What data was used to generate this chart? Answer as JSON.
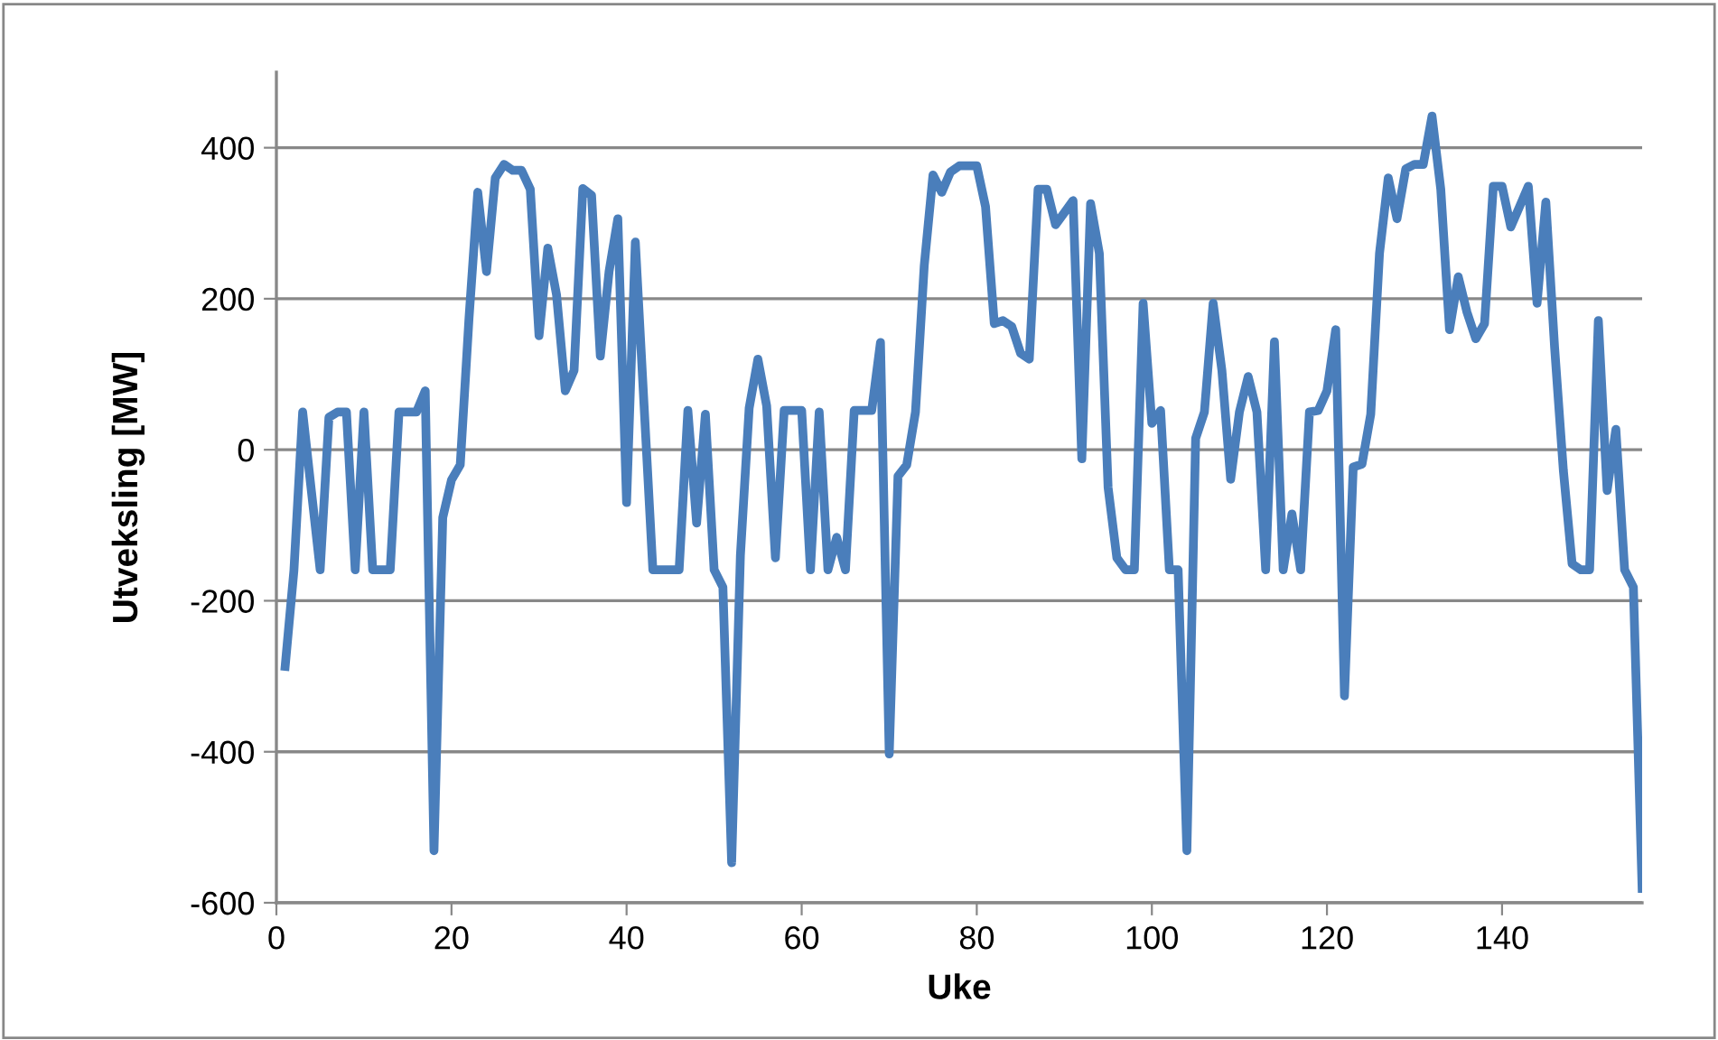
{
  "chart_data": {
    "type": "line",
    "xlabel": "Uke",
    "ylabel": "Utveksling [MW]",
    "xlim": [
      0,
      156
    ],
    "xticks": [
      0,
      20,
      40,
      60,
      80,
      100,
      120,
      140
    ],
    "ylim": [
      -600,
      500
    ],
    "yticks": [
      -600,
      -400,
      -200,
      0,
      200,
      400
    ],
    "grid": "y",
    "marker": "none",
    "line_style": "solid",
    "series": [
      {
        "color": "#4a7ebb",
        "x": [
          1,
          2,
          3,
          4,
          5,
          6,
          7,
          8,
          9,
          10,
          11,
          12,
          13,
          14,
          15,
          16,
          17,
          18,
          19,
          20,
          21,
          22,
          23,
          24,
          25,
          26,
          27,
          28,
          29,
          30,
          31,
          32,
          33,
          34,
          35,
          36,
          37,
          38,
          39,
          40,
          41,
          42,
          43,
          44,
          45,
          46,
          47,
          48,
          49,
          50,
          51,
          52,
          53,
          54,
          55,
          56,
          57,
          58,
          59,
          60,
          61,
          62,
          63,
          64,
          65,
          66,
          67,
          68,
          69,
          70,
          71,
          72,
          73,
          74,
          75,
          76,
          77,
          78,
          79,
          80,
          81,
          82,
          83,
          84,
          85,
          86,
          87,
          88,
          89,
          90,
          91,
          92,
          93,
          94,
          95,
          96,
          97,
          98,
          99,
          100,
          101,
          102,
          103,
          104,
          105,
          106,
          107,
          108,
          109,
          110,
          111,
          112,
          113,
          114,
          115,
          116,
          117,
          118,
          119,
          120,
          121,
          122,
          123,
          124,
          125,
          126,
          127,
          128,
          129,
          130,
          131,
          132,
          133,
          134,
          135,
          136,
          137,
          138,
          139,
          140,
          141,
          142,
          143,
          144,
          145,
          146,
          147,
          148,
          149,
          150,
          151,
          152,
          153,
          154,
          155,
          156
        ],
        "values": [
          -287,
          -160,
          50,
          -55,
          -159,
          43,
          50,
          50,
          -159,
          50,
          -159,
          -159,
          -159,
          50,
          50,
          50,
          78,
          -531,
          -90,
          -40,
          -20,
          174,
          341,
          236,
          360,
          378,
          370,
          370,
          345,
          151,
          267,
          205,
          78,
          105,
          346,
          337,
          124,
          236,
          306,
          -70,
          275,
          58,
          -159,
          -159,
          -159,
          -159,
          52,
          -97,
          47,
          -159,
          -182,
          -547,
          -140,
          55,
          120,
          58,
          -143,
          52,
          52,
          52,
          -159,
          50,
          -159,
          -116,
          -159,
          52,
          52,
          52,
          142,
          -403,
          -35,
          -20,
          50,
          244,
          364,
          341,
          368,
          376,
          376,
          376,
          322,
          167,
          171,
          163,
          128,
          120,
          345,
          345,
          298,
          314,
          330,
          -12,
          326,
          260,
          -50,
          -143,
          -159,
          -159,
          194,
          35,
          52,
          -159,
          -159,
          -531,
          15,
          50,
          194,
          105,
          -39,
          50,
          97,
          50,
          -159,
          143,
          -159,
          -85,
          -159,
          50,
          52,
          78,
          159,
          -326,
          -23,
          -19,
          47,
          260,
          360,
          306,
          372,
          378,
          378,
          442,
          345,
          159,
          229,
          182,
          147,
          167,
          349,
          349,
          295,
          322,
          349,
          194,
          328,
          136,
          -27,
          -151,
          -159,
          -159,
          171,
          -54,
          27,
          -159,
          -182,
          -581
        ]
      }
    ]
  }
}
